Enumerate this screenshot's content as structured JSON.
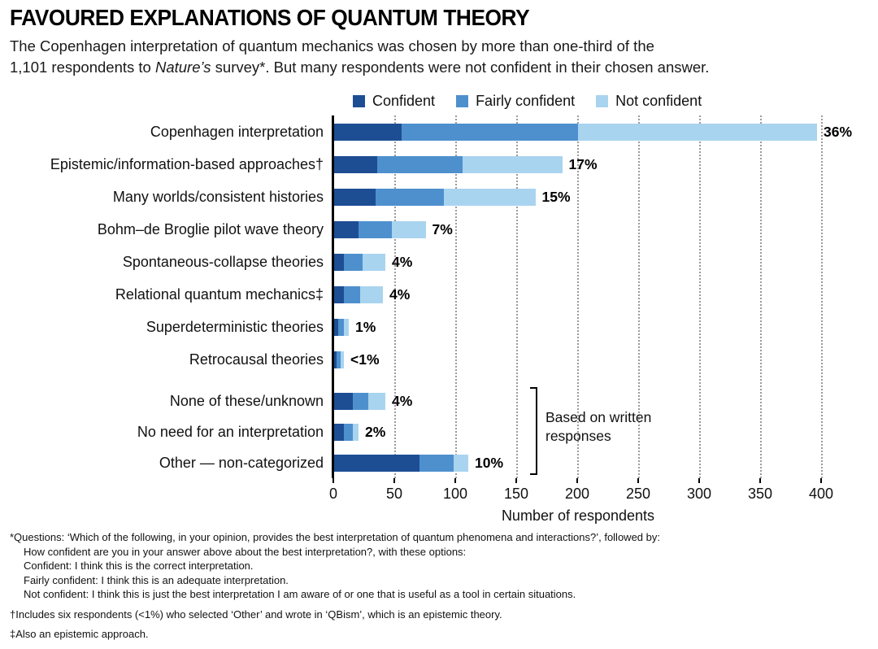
{
  "header": {
    "title": "FAVOURED EXPLANATIONS OF QUANTUM THEORY",
    "subtitle_line1": "The Copenhagen interpretation of quantum mechanics was chosen by more than one-third of the",
    "subtitle_line2_pre": "1,101 respondents to ",
    "subtitle_italic": "Nature’s",
    "subtitle_line2_post": " survey*. But many respondents were not confident in their chosen answer."
  },
  "chart_data": {
    "type": "bar",
    "orientation": "horizontal",
    "stacked": true,
    "title": "FAVOURED EXPLANATIONS OF QUANTUM THEORY",
    "xlabel": "Number of respondents",
    "xlim": [
      0,
      400
    ],
    "x_ticks": [
      0,
      50,
      100,
      150,
      200,
      250,
      300,
      350,
      400
    ],
    "grid": "dotted-vertical",
    "legend_position": "top",
    "total_respondents": "1,101",
    "legend": [
      {
        "label": "Confident",
        "color": "#1d4e94"
      },
      {
        "label": "Fairly confident",
        "color": "#4e90ce"
      },
      {
        "label": "Not confident",
        "color": "#a9d4ef"
      }
    ],
    "groups": [
      {
        "name": "survey-options",
        "annotation": "",
        "rows": [
          {
            "label": "Copenhagen interpretation",
            "percent": "36%",
            "values": [
              55,
              145,
              196
            ]
          },
          {
            "label": "Epistemic/information-based approaches†",
            "percent": "17%",
            "values": [
              35,
              70,
              82
            ]
          },
          {
            "label": "Many worlds/consistent histories",
            "percent": "15%",
            "values": [
              34,
              56,
              75
            ]
          },
          {
            "label": "Bohm–de Broglie pilot wave theory",
            "percent": "7%",
            "values": [
              20,
              27,
              28
            ]
          },
          {
            "label": "Spontaneous-collapse theories",
            "percent": "4%",
            "values": [
              8,
              15,
              19
            ]
          },
          {
            "label": "Relational quantum mechanics‡",
            "percent": "4%",
            "values": [
              8,
              13,
              19
            ]
          },
          {
            "label": "Superdeterministic theories",
            "percent": "1%",
            "values": [
              3,
              5,
              4
            ]
          },
          {
            "label": "Retrocausal theories",
            "percent": "<1%",
            "values": [
              2,
              3,
              3
            ]
          }
        ]
      },
      {
        "name": "written-responses",
        "annotation": "Based on written responses",
        "rows": [
          {
            "label": "None of these/unknown",
            "percent": "4%",
            "values": [
              15,
              13,
              14
            ]
          },
          {
            "label": "No need for an interpretation",
            "percent": "2%",
            "values": [
              8,
              7,
              5
            ]
          },
          {
            "label": "Other — non-categorized",
            "percent": "10%",
            "values": [
              70,
              28,
              12
            ]
          }
        ]
      }
    ]
  },
  "footnotes": [
    {
      "text": "*Questions: ‘Which of the following, in your opinion, provides the best interpretation of quantum phenomena and interactions?’, followed by:",
      "indent": 0,
      "gap": false
    },
    {
      "text": "How confident are you in your answer above about the best interpretation?, with these options:",
      "indent": 1,
      "gap": false
    },
    {
      "text": "Confident: I think this is the correct interpretation.",
      "indent": 1,
      "gap": false
    },
    {
      "text": "Fairly confident: I think this is an adequate interpretation.",
      "indent": 1,
      "gap": false
    },
    {
      "text": "Not confident: I think this is just the best interpretation I am aware of or one that is useful as a tool in certain situations.",
      "indent": 1,
      "gap": false
    },
    {
      "text": "†Includes six respondents (<1%) who selected ‘Other’ and wrote in ‘QBism’, which is an epistemic theory.",
      "indent": 0,
      "gap": true
    },
    {
      "text": "‡Also an epistemic approach.",
      "indent": 0,
      "gap": true
    }
  ]
}
